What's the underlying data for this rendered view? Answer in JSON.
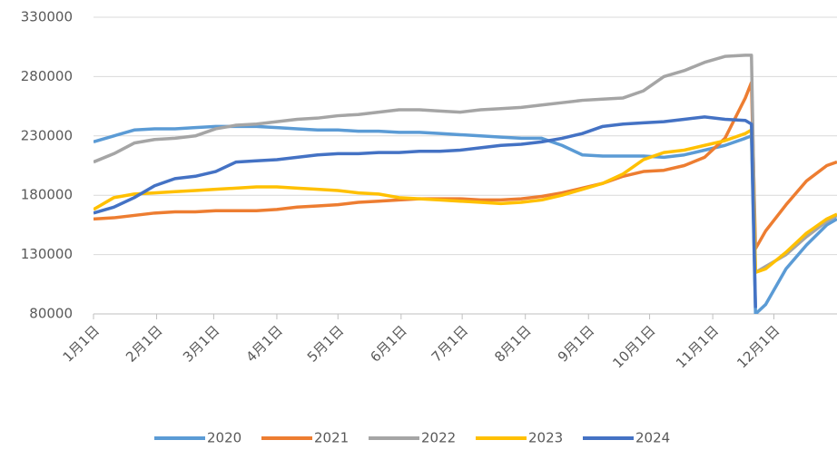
{
  "chart_data": {
    "type": "line",
    "x": [
      0,
      10,
      20,
      30,
      40,
      50,
      60,
      70,
      80,
      90,
      100,
      110,
      120,
      130,
      140,
      150,
      160,
      170,
      180,
      190,
      200,
      210,
      220,
      230,
      240,
      250,
      260,
      270,
      280,
      290,
      300,
      310,
      320,
      323,
      325,
      330,
      340,
      350,
      360,
      365
    ],
    "xlim": [
      0,
      365
    ],
    "xticks": [
      {
        "value": 0,
        "label": "1月1日"
      },
      {
        "value": 31,
        "label": "2月1日"
      },
      {
        "value": 59,
        "label": "3月1日"
      },
      {
        "value": 90,
        "label": "4月1日"
      },
      {
        "value": 120,
        "label": "5月1日"
      },
      {
        "value": 151,
        "label": "6月1日"
      },
      {
        "value": 181,
        "label": "7月1日"
      },
      {
        "value": 212,
        "label": "8月1日"
      },
      {
        "value": 243,
        "label": "9月1日"
      },
      {
        "value": 273,
        "label": "10月1日"
      },
      {
        "value": 304,
        "label": "11月1日"
      },
      {
        "value": 334,
        "label": "12月1日"
      }
    ],
    "ylim": [
      80000,
      330000
    ],
    "yticks": [
      80000,
      130000,
      180000,
      230000,
      280000,
      330000
    ],
    "grid": true,
    "legend": "bottom",
    "series": [
      {
        "name": "2020",
        "color": "#5b9bd5",
        "values": [
          225000,
          230000,
          235000,
          236000,
          236000,
          237000,
          238000,
          238000,
          238000,
          237000,
          236000,
          235000,
          235000,
          234000,
          234000,
          233000,
          233000,
          232000,
          231000,
          230000,
          229000,
          228000,
          228000,
          222000,
          214000,
          213000,
          213000,
          213000,
          212000,
          214000,
          218000,
          222000,
          228000,
          230000,
          80000,
          88000,
          118000,
          138000,
          155000,
          160000
        ]
      },
      {
        "name": "2021",
        "color": "#ed7d31",
        "values": [
          160000,
          161000,
          163000,
          165000,
          166000,
          166000,
          167000,
          167000,
          167000,
          168000,
          170000,
          171000,
          172000,
          174000,
          175000,
          176000,
          177000,
          177000,
          177000,
          176000,
          176000,
          177000,
          179000,
          182000,
          186000,
          190000,
          196000,
          200000,
          201000,
          205000,
          212000,
          228000,
          262000,
          275000,
          135000,
          150000,
          172000,
          192000,
          205000,
          208000
        ]
      },
      {
        "name": "2022",
        "color": "#a5a5a5",
        "values": [
          208000,
          215000,
          224000,
          227000,
          228000,
          230000,
          236000,
          239000,
          240000,
          242000,
          244000,
          245000,
          247000,
          248000,
          250000,
          252000,
          252000,
          251000,
          250000,
          252000,
          253000,
          254000,
          256000,
          258000,
          260000,
          261000,
          262000,
          268000,
          280000,
          285000,
          292000,
          297000,
          298000,
          298000,
          115000,
          120000,
          130000,
          145000,
          158000,
          163000
        ]
      },
      {
        "name": "2023",
        "color": "#ffc000",
        "values": [
          168000,
          178000,
          181000,
          182000,
          183000,
          184000,
          185000,
          186000,
          187000,
          187000,
          186000,
          185000,
          184000,
          182000,
          181000,
          178000,
          177000,
          176000,
          175000,
          174000,
          173000,
          174000,
          176000,
          180000,
          185000,
          190000,
          198000,
          210000,
          216000,
          218000,
          222000,
          226000,
          232000,
          235000,
          115000,
          118000,
          132000,
          148000,
          160000,
          164000
        ]
      },
      {
        "name": "2024",
        "color": "#4472c4",
        "values": [
          165000,
          170000,
          178000,
          188000,
          194000,
          196000,
          200000,
          208000,
          209000,
          210000,
          212000,
          214000,
          215000,
          215000,
          216000,
          216000,
          217000,
          217000,
          218000,
          220000,
          222000,
          223000,
          225000,
          228000,
          232000,
          238000,
          240000,
          241000,
          242000,
          244000,
          246000,
          244000,
          243000,
          240000,
          85000,
          null,
          null,
          null,
          null,
          null
        ]
      }
    ]
  }
}
